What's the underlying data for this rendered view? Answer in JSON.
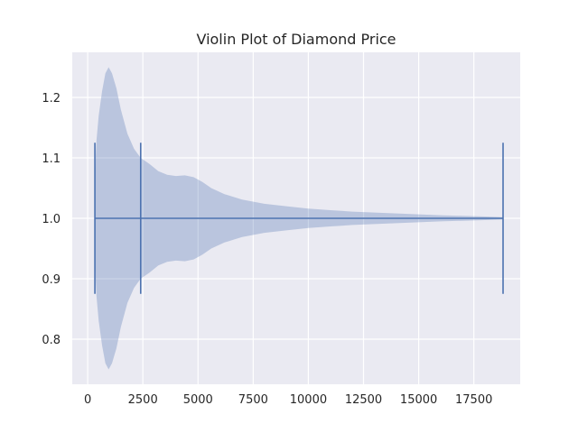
{
  "chart_data": {
    "type": "violin",
    "title": "Violin Plot of Diamond Price",
    "xlabel": "",
    "ylabel": "",
    "orientation": "horizontal",
    "position": 1.0,
    "xlim": [
      -700,
      19600
    ],
    "ylim": [
      0.7254,
      1.2746
    ],
    "xticks": [
      0,
      2500,
      5000,
      7500,
      10000,
      12500,
      15000,
      17500
    ],
    "xtick_labels": [
      "0",
      "2500",
      "5000",
      "7500",
      "10000",
      "12500",
      "15000",
      "17500"
    ],
    "yticks": [
      0.8,
      0.9,
      1.0,
      1.1,
      1.2
    ],
    "ytick_labels": [
      "0.8",
      "0.9",
      "1.0",
      "1.1",
      "1.2"
    ],
    "grid": true,
    "stats": {
      "min": 326,
      "median": 2401,
      "max": 18823
    },
    "density_profile": [
      {
        "x": 326,
        "half_width": 0.07
      },
      {
        "x": 400,
        "half_width": 0.13
      },
      {
        "x": 500,
        "half_width": 0.17
      },
      {
        "x": 650,
        "half_width": 0.21
      },
      {
        "x": 800,
        "half_width": 0.24
      },
      {
        "x": 950,
        "half_width": 0.25
      },
      {
        "x": 1100,
        "half_width": 0.24
      },
      {
        "x": 1300,
        "half_width": 0.215
      },
      {
        "x": 1500,
        "half_width": 0.18
      },
      {
        "x": 1800,
        "half_width": 0.14
      },
      {
        "x": 2100,
        "half_width": 0.115
      },
      {
        "x": 2400,
        "half_width": 0.1
      },
      {
        "x": 2800,
        "half_width": 0.09
      },
      {
        "x": 3200,
        "half_width": 0.078
      },
      {
        "x": 3600,
        "half_width": 0.072
      },
      {
        "x": 4000,
        "half_width": 0.07
      },
      {
        "x": 4400,
        "half_width": 0.071
      },
      {
        "x": 4800,
        "half_width": 0.068
      },
      {
        "x": 5200,
        "half_width": 0.06
      },
      {
        "x": 5600,
        "half_width": 0.05
      },
      {
        "x": 6200,
        "half_width": 0.04
      },
      {
        "x": 7000,
        "half_width": 0.031
      },
      {
        "x": 8000,
        "half_width": 0.024
      },
      {
        "x": 9000,
        "half_width": 0.02
      },
      {
        "x": 10000,
        "half_width": 0.016
      },
      {
        "x": 11000,
        "half_width": 0.0135
      },
      {
        "x": 12000,
        "half_width": 0.011
      },
      {
        "x": 13000,
        "half_width": 0.0095
      },
      {
        "x": 14000,
        "half_width": 0.008
      },
      {
        "x": 15000,
        "half_width": 0.0065
      },
      {
        "x": 16000,
        "half_width": 0.005
      },
      {
        "x": 17000,
        "half_width": 0.004
      },
      {
        "x": 18000,
        "half_width": 0.003
      },
      {
        "x": 18823,
        "half_width": 0.002
      }
    ],
    "cap_half_height": 0.125,
    "colors": {
      "plot_background": "#eaeaf2",
      "grid": "#ffffff",
      "violin_fill": "#4c72b0",
      "violin_fill_opacity": 0.3,
      "lines": "#4c72b0",
      "text": "#262626"
    }
  }
}
